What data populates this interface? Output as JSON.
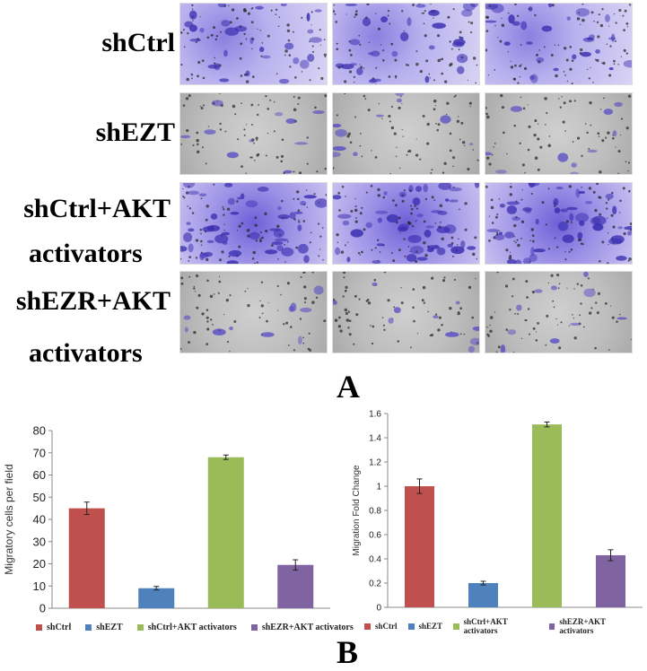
{
  "panel_a": {
    "rows": [
      {
        "label_lines": [
          "shCtrl"
        ],
        "style": "purple"
      },
      {
        "label_lines": [
          "shEZT"
        ],
        "style": "grey"
      },
      {
        "label_lines": [
          "shCtrl+AKT",
          "activators"
        ],
        "style": "dense"
      },
      {
        "label_lines": [
          "shEZR+AKT",
          "activators"
        ],
        "style": "grey"
      }
    ],
    "letter": "A"
  },
  "panel_b": {
    "letter": "B"
  },
  "colors": {
    "shCtrl": "#c0504d",
    "shEZT": "#4f81bd",
    "shCtrl_AKT": "#9bbb59",
    "shEZR_AKT": "#8064a2"
  },
  "chart_data": [
    {
      "type": "bar",
      "categories": [
        "shCtrl",
        "shEZT",
        "shCtrl+AKT activators",
        "shEZR+AKT activators"
      ],
      "values": [
        45,
        9,
        68,
        19.5
      ],
      "errors": [
        2.8,
        0.8,
        1.0,
        2.3
      ],
      "title": "",
      "xlabel": "",
      "ylabel": "Migratory cells per field",
      "ylim": [
        0,
        80
      ],
      "yticks": [
        0,
        10,
        20,
        30,
        40,
        50,
        60,
        70,
        80
      ],
      "legend": [
        "shCtrl",
        "shEZT",
        "shCtrl+AKT activators",
        "shEZR+AKT activators"
      ],
      "legend_position": "bottom"
    },
    {
      "type": "bar",
      "categories": [
        "shCtrl",
        "shEZT",
        "shCtrl+AKT activators",
        "shEZR+AKT activators"
      ],
      "values": [
        1.0,
        0.2,
        1.51,
        0.43
      ],
      "errors": [
        0.06,
        0.015,
        0.02,
        0.045
      ],
      "title": "",
      "xlabel": "",
      "ylabel": "Migration Fold Change",
      "ylim": [
        0,
        1.6
      ],
      "yticks": [
        0,
        0.2,
        0.4,
        0.6,
        0.8,
        1,
        1.2,
        1.4,
        1.6
      ],
      "legend": [
        "shCtrl",
        "shEZT",
        "shCtrl+AKT activators",
        "shEZR+AKT activators"
      ],
      "legend_position": "bottom"
    }
  ]
}
